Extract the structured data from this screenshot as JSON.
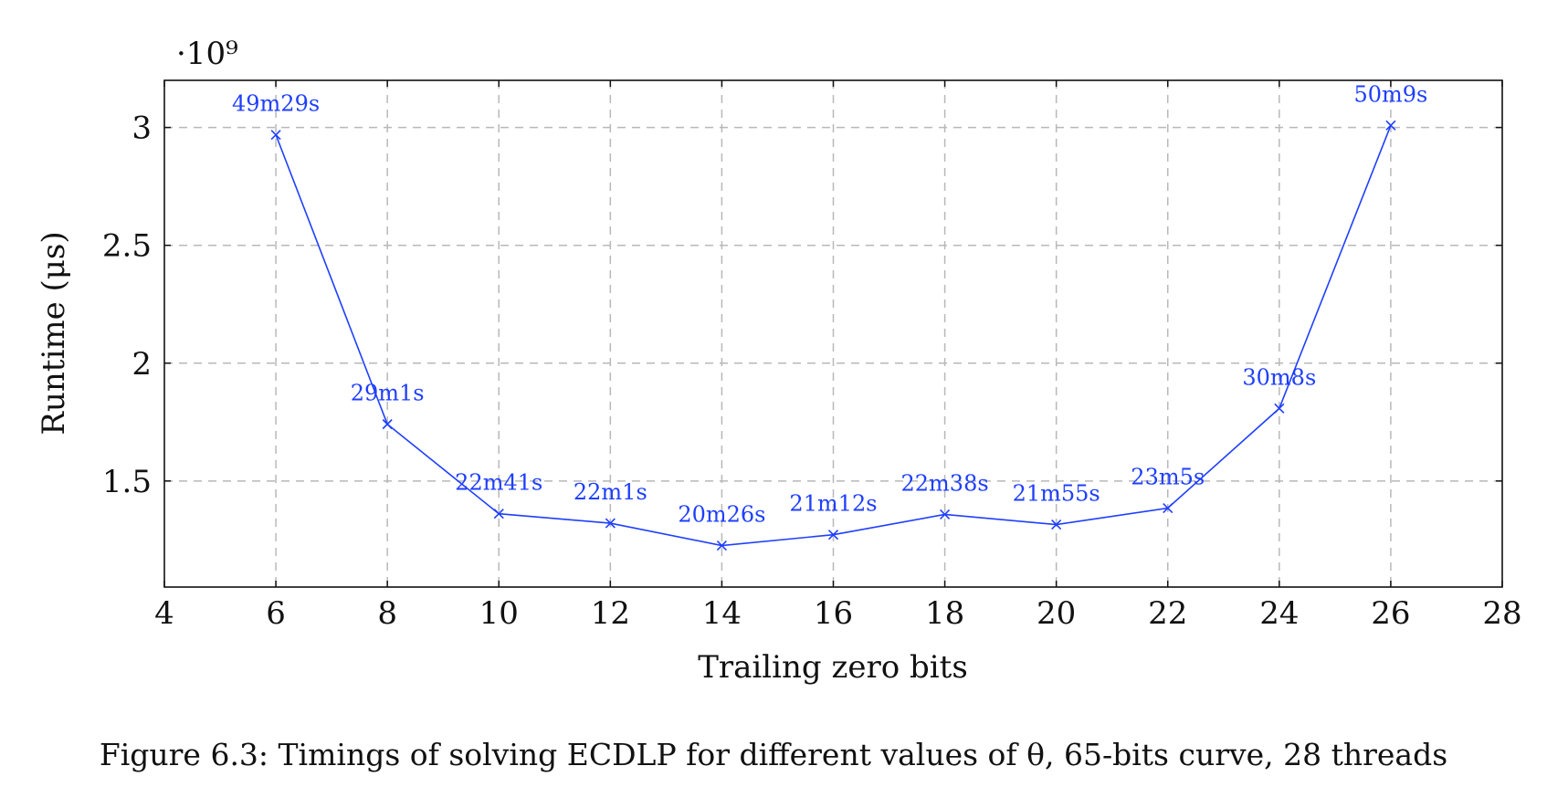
{
  "chart_data": {
    "type": "line",
    "xlabel": "Trailing zero bits",
    "ylabel": "Runtime (μs)",
    "y_multiplier_label": "·10⁹",
    "xlim": [
      4,
      28
    ],
    "ylim": [
      1.05,
      3.2
    ],
    "x_ticks": [
      4,
      6,
      8,
      10,
      12,
      14,
      16,
      18,
      20,
      22,
      24,
      26,
      28
    ],
    "y_ticks": [
      1.5,
      2,
      2.5,
      3
    ],
    "y_tick_labels": [
      "1.5",
      "2",
      "2.5",
      "3"
    ],
    "grid": true,
    "series": [
      {
        "color": "#1f3fff",
        "marker": "x",
        "points": [
          {
            "x": 6,
            "y": 2.969,
            "label": "49m29s"
          },
          {
            "x": 8,
            "y": 1.741,
            "label": "29m1s"
          },
          {
            "x": 10,
            "y": 1.361,
            "label": "22m41s"
          },
          {
            "x": 12,
            "y": 1.321,
            "label": "22m1s"
          },
          {
            "x": 14,
            "y": 1.226,
            "label": "20m26s"
          },
          {
            "x": 16,
            "y": 1.272,
            "label": "21m12s"
          },
          {
            "x": 18,
            "y": 1.358,
            "label": "22m38s"
          },
          {
            "x": 20,
            "y": 1.315,
            "label": "21m55s"
          },
          {
            "x": 22,
            "y": 1.385,
            "label": "23m5s"
          },
          {
            "x": 24,
            "y": 1.808,
            "label": "30m8s"
          },
          {
            "x": 26,
            "y": 3.009,
            "label": "50m9s"
          }
        ]
      }
    ]
  },
  "caption": "Figure 6.3: Timings of solving ECDLP for different values of θ, 65-bits curve, 28 threads"
}
